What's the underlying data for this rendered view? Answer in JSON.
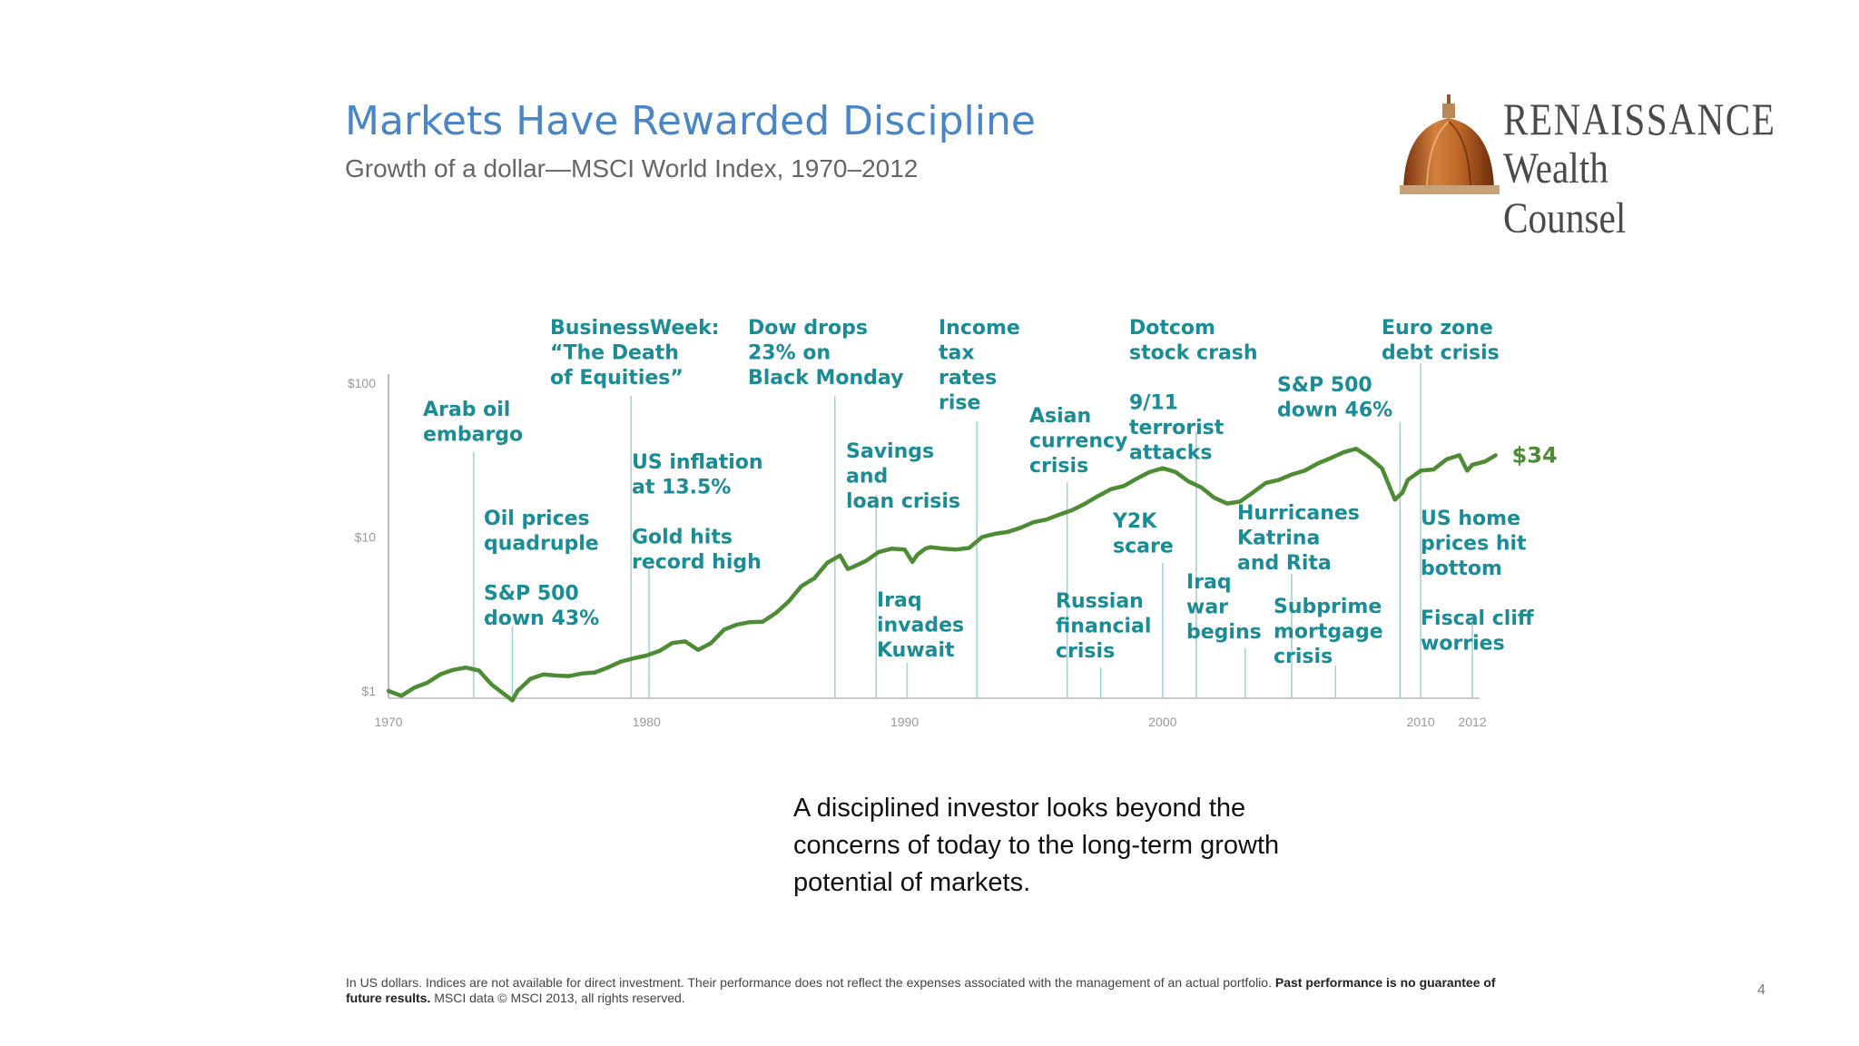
{
  "header": {
    "title": "Markets Have Rewarded Discipline",
    "subtitle": "Growth of a dollar—MSCI World Index, 1970–2012"
  },
  "logo": {
    "line1": "RENAISSANCE",
    "line2": "Wealth Counsel",
    "icon": "dome-icon"
  },
  "colors": {
    "line": "#4d8b35",
    "annotation_text": "#1a8c95",
    "leader_line": "#9fd0d6",
    "axis": "#bbbbbb",
    "tick_text": "#999999",
    "title": "#4a86c6"
  },
  "chart_data": {
    "type": "line",
    "title": "Growth of a dollar—MSCI World Index, 1970–2012",
    "y_scale": "log",
    "ylim": [
      1,
      100
    ],
    "xlim": [
      1970,
      2012
    ],
    "y_ticks": [
      "$1",
      "$10",
      "$100"
    ],
    "x_ticks": [
      "1970",
      "1980",
      "1990",
      "2000",
      "2010",
      "2012"
    ],
    "end_label": "$34",
    "grid": false,
    "series": [
      {
        "x": [
          1970.0,
          1970.5,
          1971.0,
          1971.5,
          1972.0,
          1972.5,
          1973.0,
          1973.5,
          1974.0,
          1974.5,
          1974.8,
          1975.0,
          1975.5,
          1976.0,
          1976.5,
          1977.0,
          1977.5,
          1978.0,
          1978.5,
          1979.0,
          1979.5,
          1980.0,
          1980.5,
          1981.0,
          1981.5,
          1982.0,
          1982.5,
          1983.0,
          1983.5,
          1984.0,
          1984.5,
          1985.0,
          1985.5,
          1986.0,
          1986.5,
          1987.0,
          1987.5,
          1987.8,
          1988.0,
          1988.5,
          1989.0,
          1989.5,
          1990.0,
          1990.3,
          1990.5,
          1990.8,
          1991.0,
          1991.5,
          1992.0,
          1992.5,
          1993.0,
          1993.5,
          1994.0,
          1994.5,
          1995.0,
          1995.5,
          1996.0,
          1996.5,
          1997.0,
          1997.5,
          1998.0,
          1998.5,
          1999.0,
          1999.5,
          2000.0,
          2000.5,
          2001.0,
          2001.5,
          2002.0,
          2002.5,
          2003.0,
          2003.5,
          2004.0,
          2004.5,
          2005.0,
          2005.5,
          2006.0,
          2006.5,
          2007.0,
          2007.5,
          2008.0,
          2008.5,
          2009.0,
          2009.3,
          2009.5,
          2010.0,
          2010.5,
          2011.0,
          2011.5,
          2011.8,
          2012.0,
          2012.5,
          2012.9
        ],
        "values": [
          1.0,
          0.93,
          1.05,
          1.13,
          1.28,
          1.37,
          1.42,
          1.36,
          1.1,
          0.95,
          0.87,
          1.0,
          1.2,
          1.28,
          1.26,
          1.25,
          1.3,
          1.32,
          1.42,
          1.55,
          1.63,
          1.7,
          1.82,
          2.05,
          2.1,
          1.85,
          2.05,
          2.5,
          2.7,
          2.8,
          2.82,
          3.2,
          3.8,
          4.8,
          5.4,
          6.8,
          7.6,
          6.2,
          6.4,
          7.0,
          8.0,
          8.4,
          8.3,
          6.9,
          7.7,
          8.4,
          8.6,
          8.4,
          8.3,
          8.5,
          10.0,
          10.5,
          10.8,
          11.5,
          12.5,
          13.0,
          14.0,
          15.0,
          16.5,
          18.5,
          20.5,
          21.5,
          24.0,
          26.5,
          28.0,
          26.5,
          23.0,
          21.0,
          18.0,
          16.5,
          17.0,
          19.5,
          22.5,
          23.5,
          25.5,
          27.0,
          30.0,
          32.5,
          35.5,
          37.5,
          33.0,
          28.0,
          17.5,
          19.5,
          23.5,
          27.0,
          27.5,
          32.0,
          34.0,
          27.0,
          29.5,
          31.0,
          34.0
        ]
      }
    ],
    "annotations": [
      {
        "lines": [
          "Arab oil",
          "embargo"
        ],
        "year": 1973.3
      },
      {
        "lines": [
          "Oil prices",
          "quadruple",
          "",
          "S&P 500",
          "down 43%"
        ],
        "year": 1974.8
      },
      {
        "lines": [
          "BusinessWeek:",
          "“The Death",
          "of Equities”"
        ],
        "year": 1979.4
      },
      {
        "lines": [
          "US inflation",
          "at 13.5%",
          "",
          "Gold hits",
          "record high"
        ],
        "year": 1980.1
      },
      {
        "lines": [
          "Dow drops",
          "23% on",
          "Black Monday"
        ],
        "year": 1987.3
      },
      {
        "lines": [
          "Savings",
          "and",
          "loan crisis"
        ],
        "year": 1988.9
      },
      {
        "lines": [
          "Iraq",
          "invades",
          "Kuwait"
        ],
        "year": 1990.1
      },
      {
        "lines": [
          "Income",
          "tax",
          "rates",
          "rise"
        ],
        "year": 1992.8
      },
      {
        "lines": [
          "Asian",
          "currency",
          "crisis"
        ],
        "year": 1996.3
      },
      {
        "lines": [
          "Russian",
          "financial",
          "crisis"
        ],
        "year": 1997.6
      },
      {
        "lines": [
          "Y2K",
          "scare"
        ],
        "year": 2000.0
      },
      {
        "lines": [
          "Dotcom",
          "stock crash",
          "",
          "9/11",
          "terrorist",
          "attacks"
        ],
        "year": 2001.3
      },
      {
        "lines": [
          "Iraq",
          "war",
          "begins"
        ],
        "year": 2003.2
      },
      {
        "lines": [
          "Hurricanes",
          "Katrina",
          "and Rita"
        ],
        "year": 2005.0
      },
      {
        "lines": [
          "Subprime",
          "mortgage",
          "crisis"
        ],
        "year": 2006.7
      },
      {
        "lines": [
          "S&P 500",
          "down 46%"
        ],
        "year": 2009.2
      },
      {
        "lines": [
          "Euro zone",
          "debt crisis"
        ],
        "year": 2010.0
      },
      {
        "lines": [
          "US home",
          "prices hit",
          "bottom",
          "",
          "Fiscal cliff",
          "worries"
        ],
        "year": 2012.0
      }
    ]
  },
  "caption": "A disciplined investor looks beyond the concerns of today to the long-term growth potential of markets.",
  "footnote": {
    "text": "In US dollars. Indices are not available for direct investment. Their performance does not reflect the expenses associated with the management of an actual portfolio.",
    "bold": "Past performance is no guarantee of future results.",
    "source": "MSCI data © MSCI 2013, all rights reserved."
  },
  "page_number": "4"
}
